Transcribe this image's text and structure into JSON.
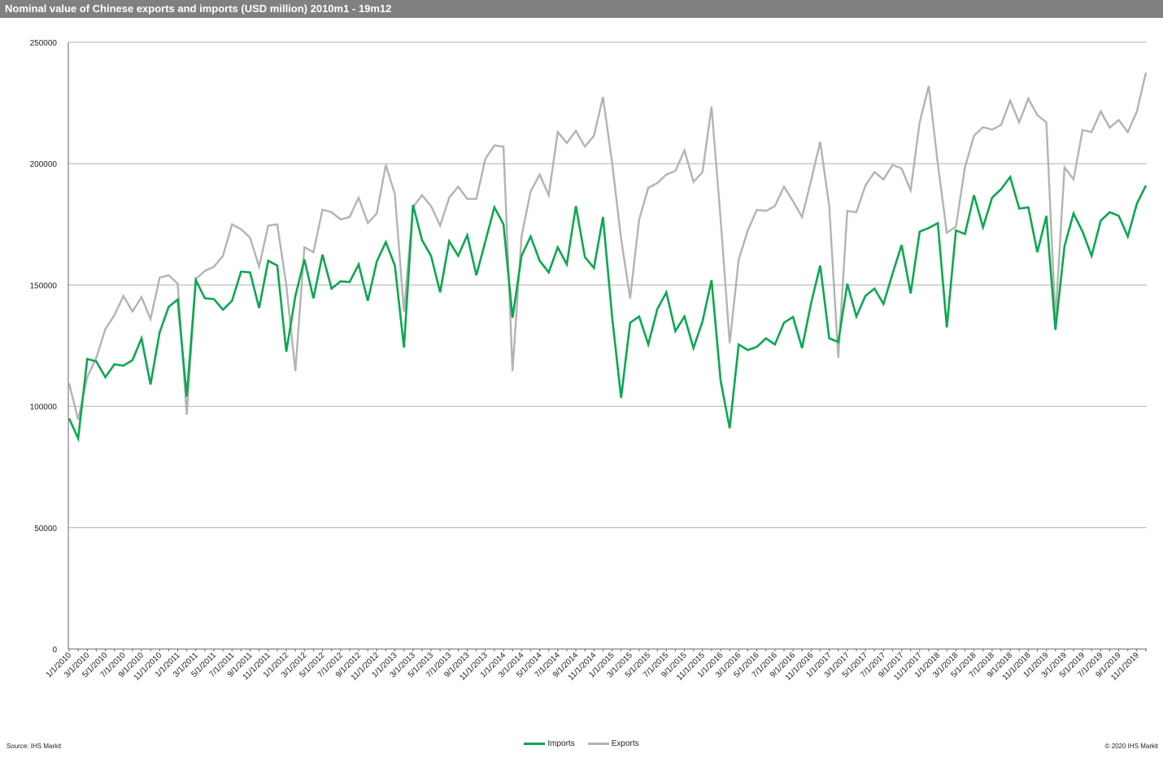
{
  "header": {
    "title": "Nominal value of Chinese exports and imports (USD million) 2010m1 - 19m12"
  },
  "footer": {
    "source": "Source: IHS Markit",
    "copyright": "© 2020 IHS Markit"
  },
  "colors": {
    "imports": "#0aa84f",
    "exports": "#b3b3b3",
    "grid": "#b0b0b0",
    "title_bar": "#808080"
  },
  "chart_data": {
    "type": "line",
    "title": "Nominal value of Chinese exports and imports (USD million) 2010m1 - 19m12",
    "xlabel": "",
    "ylabel": "",
    "ylim": [
      0,
      250000
    ],
    "yticks": [
      0,
      50000,
      100000,
      150000,
      200000,
      250000
    ],
    "grid": true,
    "legend_position": "bottom-center",
    "x": [
      "1/1/2010",
      "2/1/2010",
      "3/1/2010",
      "4/1/2010",
      "5/1/2010",
      "6/1/2010",
      "7/1/2010",
      "8/1/2010",
      "9/1/2010",
      "10/1/2010",
      "11/1/2010",
      "12/1/2010",
      "1/1/2011",
      "2/1/2011",
      "3/1/2011",
      "4/1/2011",
      "5/1/2011",
      "6/1/2011",
      "7/1/2011",
      "8/1/2011",
      "9/1/2011",
      "10/1/2011",
      "11/1/2011",
      "12/1/2011",
      "1/1/2012",
      "2/1/2012",
      "3/1/2012",
      "4/1/2012",
      "5/1/2012",
      "6/1/2012",
      "7/1/2012",
      "8/1/2012",
      "9/1/2012",
      "10/1/2012",
      "11/1/2012",
      "12/1/2012",
      "1/1/2013",
      "2/1/2013",
      "3/1/2013",
      "4/1/2013",
      "5/1/2013",
      "6/1/2013",
      "7/1/2013",
      "8/1/2013",
      "9/1/2013",
      "10/1/2013",
      "11/1/2013",
      "12/1/2013",
      "1/1/2014",
      "2/1/2014",
      "3/1/2014",
      "4/1/2014",
      "5/1/2014",
      "6/1/2014",
      "7/1/2014",
      "8/1/2014",
      "9/1/2014",
      "10/1/2014",
      "11/1/2014",
      "12/1/2014",
      "1/1/2015",
      "2/1/2015",
      "3/1/2015",
      "4/1/2015",
      "5/1/2015",
      "6/1/2015",
      "7/1/2015",
      "8/1/2015",
      "9/1/2015",
      "10/1/2015",
      "11/1/2015",
      "12/1/2015",
      "1/1/2016",
      "2/1/2016",
      "3/1/2016",
      "4/1/2016",
      "5/1/2016",
      "6/1/2016",
      "7/1/2016",
      "8/1/2016",
      "9/1/2016",
      "10/1/2016",
      "11/1/2016",
      "12/1/2016",
      "1/1/2017",
      "2/1/2017",
      "3/1/2017",
      "4/1/2017",
      "5/1/2017",
      "6/1/2017",
      "7/1/2017",
      "8/1/2017",
      "9/1/2017",
      "10/1/2017",
      "11/1/2017",
      "12/1/2017",
      "1/1/2018",
      "2/1/2018",
      "3/1/2018",
      "4/1/2018",
      "5/1/2018",
      "6/1/2018",
      "7/1/2018",
      "8/1/2018",
      "9/1/2018",
      "10/1/2018",
      "11/1/2018",
      "12/1/2018",
      "1/1/2019",
      "2/1/2019",
      "3/1/2019",
      "4/1/2019",
      "5/1/2019",
      "6/1/2019",
      "7/1/2019",
      "8/1/2019",
      "9/1/2019",
      "10/1/2019",
      "11/1/2019",
      "12/1/2019"
    ],
    "series": [
      {
        "name": "Imports",
        "color": "#0aa84f",
        "values": [
          95000,
          86800,
          119500,
          118500,
          112000,
          117300,
          116800,
          119000,
          128000,
          109000,
          130500,
          141000,
          144000,
          104000,
          152000,
          144500,
          144200,
          139800,
          143500,
          155500,
          155200,
          140500,
          160000,
          158000,
          122500,
          145500,
          160500,
          144500,
          162500,
          148500,
          151500,
          151200,
          158500,
          143500,
          159700,
          167700,
          158000,
          124200,
          183000,
          168500,
          162000,
          147000,
          168000,
          162000,
          170500,
          154000,
          168000,
          182000,
          175000,
          136500,
          162000,
          170000,
          160000,
          155200,
          165500,
          158500,
          182500,
          161500,
          157000,
          178000,
          137000,
          103500,
          134500,
          137000,
          125500,
          140000,
          147000,
          131000,
          137000,
          124000,
          135000,
          152000,
          110500,
          91000,
          125500,
          123200,
          124500,
          128000,
          125500,
          134500,
          136800,
          124000,
          142500,
          158000,
          128000,
          126500,
          150500,
          137000,
          145500,
          148500,
          142200,
          154700,
          166500,
          146500,
          172000,
          173500,
          175500,
          132500,
          172500,
          171000,
          187000,
          173800,
          186000,
          189500,
          194500,
          181500,
          182000,
          163500,
          178500,
          131500,
          166000,
          179500,
          172000,
          162000,
          176500,
          180000,
          178500,
          170000,
          183500,
          191000
        ]
      },
      {
        "name": "Exports",
        "color": "#b3b3b3",
        "values": [
          109500,
          94500,
          112000,
          120000,
          131800,
          137500,
          145500,
          139000,
          145000,
          136000,
          153000,
          154000,
          150500,
          96500,
          152500,
          155800,
          157500,
          162000,
          175000,
          173000,
          169500,
          157500,
          174500,
          175000,
          150000,
          114500,
          165500,
          163500,
          181000,
          180000,
          177000,
          178000,
          186000,
          175500,
          179500,
          199500,
          187500,
          139000,
          182000,
          187000,
          182500,
          174500,
          186000,
          190500,
          185500,
          185500,
          202000,
          207500,
          207000,
          114500,
          170000,
          188500,
          195500,
          187000,
          213000,
          208500,
          213500,
          207000,
          211500,
          227500,
          200500,
          169000,
          144500,
          177000,
          190000,
          192000,
          195500,
          197000,
          205500,
          192500,
          196500,
          223500,
          177000,
          126000,
          160500,
          172500,
          181000,
          180500,
          182500,
          190500,
          184500,
          178000,
          193000,
          209000,
          182500,
          120000,
          180500,
          180000,
          191000,
          196500,
          193500,
          199500,
          198000,
          189000,
          217000,
          232000,
          200000,
          171500,
          174000,
          198500,
          211500,
          215000,
          214000,
          216000,
          226000,
          217000,
          226800,
          220000,
          217000,
          135500,
          198500,
          193500,
          213800,
          213000,
          221500,
          214800,
          218000,
          213000,
          221500,
          237500
        ]
      }
    ]
  }
}
